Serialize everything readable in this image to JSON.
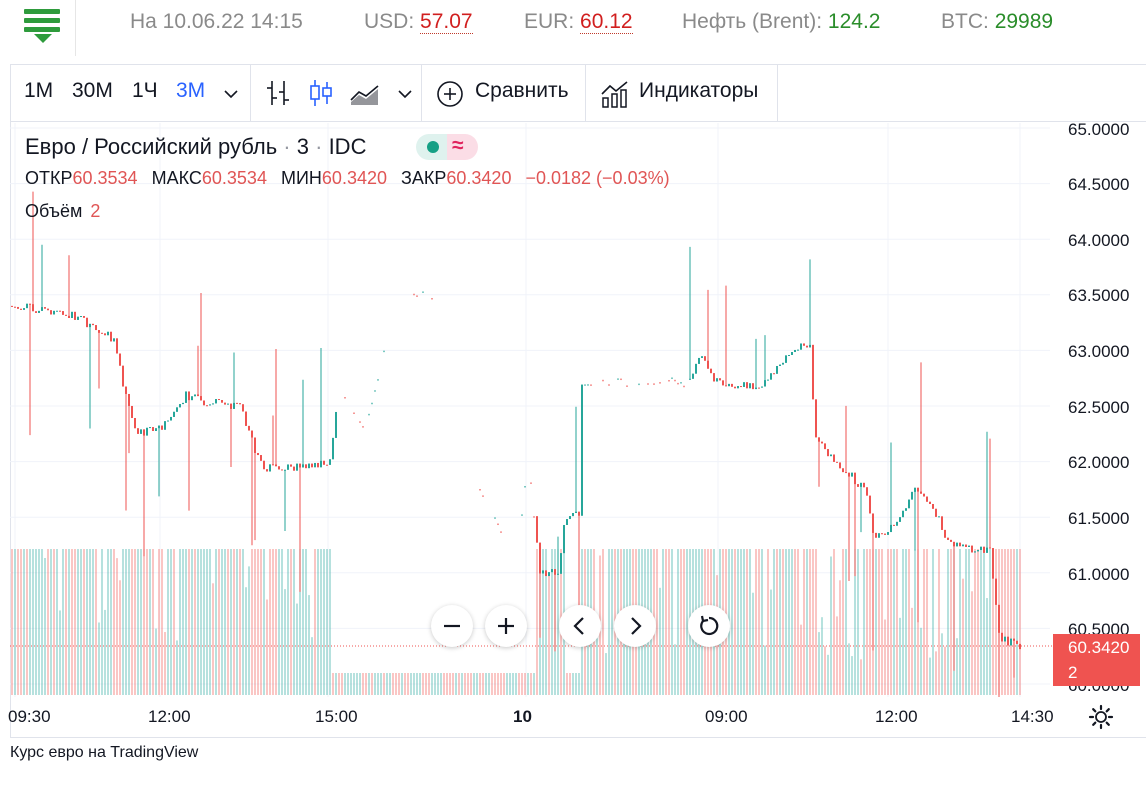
{
  "ticker": {
    "date_label": "На 10.06.22 14:15",
    "usd_label": "USD:",
    "usd_value": "57.07",
    "eur_label": "EUR:",
    "eur_value": "60.12",
    "oil_label": "Нефть (Brent):",
    "oil_value": "124.2",
    "btc_label": "BTC:",
    "btc_value": "29989"
  },
  "toolbar": {
    "intervals": [
      "1M",
      "30M",
      "1Ч",
      "3M"
    ],
    "active_interval": "3M",
    "compare_label": "Сравнить",
    "indicators_label": "Индикаторы"
  },
  "legend": {
    "title": "Евро / Российский рубль",
    "interval": "3",
    "source": "IDC",
    "open_label": "ОТКР",
    "open": "60.3534",
    "high_label": "МАКС",
    "high": "60.3534",
    "low_label": "МИН",
    "low": "60.3420",
    "close_label": "ЗАКР",
    "close": "60.3420",
    "change": "−0.0182 (−0.03%)",
    "volume_label": "Объём",
    "volume": "2"
  },
  "price_axis": [
    "65.0000",
    "64.5000",
    "64.0000",
    "63.5000",
    "63.0000",
    "62.5000",
    "62.0000",
    "61.5000",
    "61.0000",
    "60.5000",
    "60.0000"
  ],
  "time_axis": [
    "09:30",
    "12:00",
    "15:00",
    "10",
    "09:00",
    "12:00",
    "14:30"
  ],
  "last_price": {
    "price": "60.3420",
    "volume": "2"
  },
  "colors": {
    "up": "#26a69a",
    "down": "#ef5350",
    "accent": "#2962ff",
    "brand": "#2e9b3c"
  },
  "chart_data": {
    "type": "candlestick",
    "ylim": [
      60.0,
      65.0
    ],
    "series": [
      {
        "segment": "09.06 09:30–12:00",
        "approx_range": [
          62.2,
          64.5
        ]
      },
      {
        "segment": "09.06 12:00–15:00",
        "approx_range": [
          61.9,
          63.2
        ]
      },
      {
        "segment": "09.06 15:00–10.06",
        "approx_range": [
          61.4,
          63.8
        ]
      },
      {
        "segment": "10.06 open",
        "approx_range": [
          61.0,
          62.1
        ]
      },
      {
        "segment": "10.06 09:00",
        "approx_range": [
          62.6,
          63.7
        ]
      },
      {
        "segment": "10.06 12:00–14:30",
        "approx_range": [
          60.3,
          62.8
        ]
      }
    ],
    "last_close": 60.342
  },
  "footer": {
    "text": "Курс евро на TradingView"
  }
}
